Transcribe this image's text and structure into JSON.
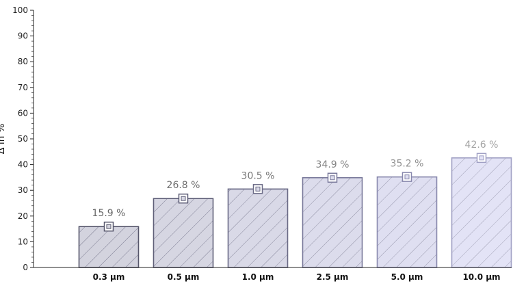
{
  "chart_data": {
    "type": "bar",
    "categories": [
      "0.3 µm",
      "0.5 µm",
      "1.0 µm",
      "2.5 µm",
      "5.0 µm",
      "10.0 µm"
    ],
    "values": [
      15.9,
      26.8,
      30.5,
      34.9,
      35.2,
      42.6
    ],
    "data_labels": [
      "15.9 %",
      "26.8 %",
      "30.5 %",
      "34.9 %",
      "35.2 %",
      "42.6 %"
    ],
    "ylabel": "Δ in %",
    "ylim": [
      0,
      100
    ],
    "yticks": [
      0,
      10,
      20,
      30,
      40,
      50,
      60,
      70,
      80,
      90,
      100
    ],
    "grid": false,
    "legend": "none",
    "colors": {
      "bar_fills": [
        "#d3d3de",
        "#d6d6e2",
        "#d9d9e7",
        "#dcdcec",
        "#dfdff1",
        "#e3e3f6"
      ],
      "bar_strokes": [
        "#55556a",
        "#5f5f78",
        "#6a6a86",
        "#78789a",
        "#8888ad",
        "#a0a0c4"
      ],
      "label_colors": [
        "#666666",
        "#6e6e6e",
        "#777777",
        "#838383",
        "#909090",
        "#a3a3a3"
      ],
      "axis": "#222222"
    }
  }
}
